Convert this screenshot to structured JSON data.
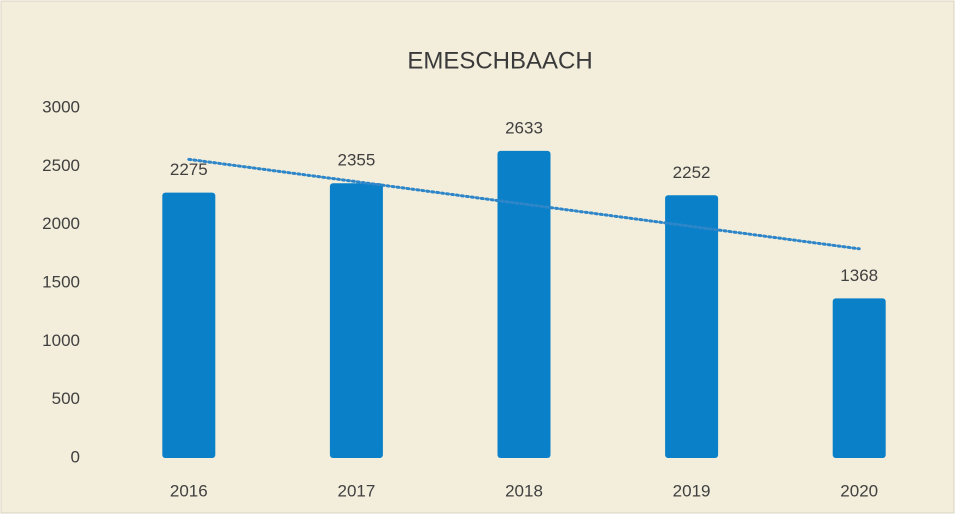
{
  "chart_data": {
    "type": "bar",
    "title": "EMESCHBAACH",
    "categories": [
      "2016",
      "2017",
      "2018",
      "2019",
      "2020"
    ],
    "values": [
      2275,
      2355,
      2633,
      2252,
      1368
    ],
    "color": "#0a80c8",
    "trendline": true,
    "trendline_color": "#2e86c9",
    "ylim": [
      0,
      3000
    ],
    "yticks": [
      0,
      500,
      1000,
      1500,
      2000,
      2500,
      3000
    ],
    "grid": false
  }
}
